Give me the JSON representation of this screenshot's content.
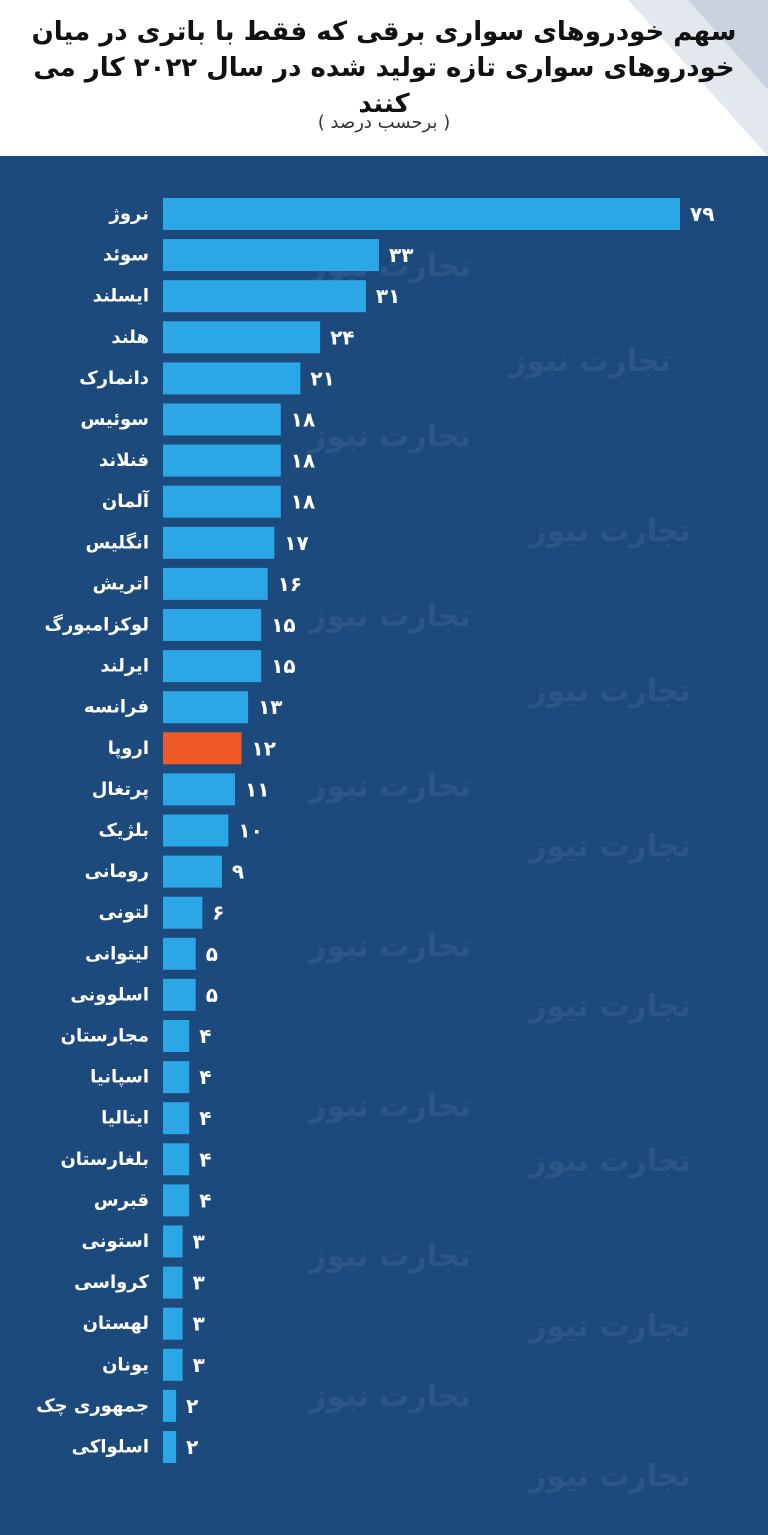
{
  "header": {
    "title_line1": "سهم خودروهای سواری برقی که فقط با باتری در میان",
    "title_line2": "خودروهای سواری تازه تولید شده در سال ۲۰۲۲ کار می کنند",
    "subtitle": "( برحسب درصد )"
  },
  "watermark": "تجارت نیوز",
  "colors": {
    "background": "#1d4a7d",
    "bar": "#2ba7e6",
    "highlight_bar": "#f05a28",
    "label_text": "#ffffff"
  },
  "chart_data": {
    "type": "bar",
    "orientation": "horizontal",
    "categories": [
      "نروژ",
      "سوئد",
      "ایسلند",
      "هلند",
      "دانمارک",
      "سوئیس",
      "فنلاند",
      "آلمان",
      "انگلیس",
      "اتریش",
      "لوکزامبورگ",
      "ایرلند",
      "فرانسه",
      "اروپا",
      "پرتغال",
      "بلژیک",
      "رومانی",
      "لتونی",
      "لیتوانی",
      "اسلوونی",
      "مجارستان",
      "اسپانیا",
      "ایتالیا",
      "بلغارستان",
      "قبرس",
      "استونی",
      "کرواسی",
      "لهستان",
      "یونان",
      "جمهوری چک",
      "اسلواکی"
    ],
    "values": [
      79,
      33,
      31,
      24,
      21,
      18,
      18,
      18,
      17,
      16,
      15,
      15,
      13,
      12,
      11,
      10,
      9,
      6,
      5,
      5,
      4,
      4,
      4,
      4,
      4,
      3,
      3,
      3,
      3,
      2,
      2
    ],
    "value_labels": [
      "۷۹",
      "۳۳",
      "۳۱",
      "۲۴",
      "۲۱",
      "۱۸",
      "۱۸",
      "۱۸",
      "۱۷",
      "۱۶",
      "۱۵",
      "۱۵",
      "۱۳",
      "۱۲",
      "۱۱",
      "۱۰",
      "۹",
      "۶",
      "۵",
      "۵",
      "۴",
      "۴",
      "۴",
      "۴",
      "۴",
      "۳",
      "۳",
      "۳",
      "۳",
      "۲",
      "۲"
    ],
    "highlight_category": "اروپا",
    "xlim": [
      0,
      79
    ],
    "grid": false,
    "legend": "none"
  }
}
